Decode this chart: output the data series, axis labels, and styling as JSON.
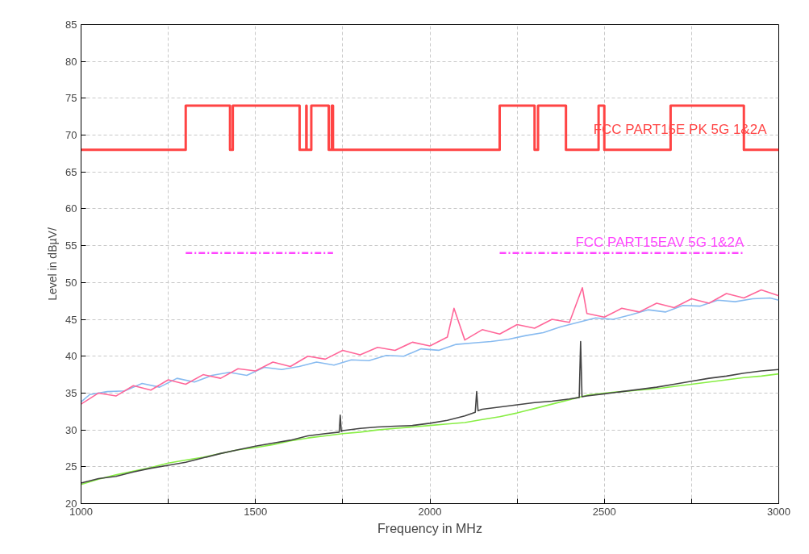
{
  "chart_data": {
    "type": "line",
    "xlabel": "Frequency in MHz",
    "ylabel": "Level in dBµV/",
    "xlim": [
      1000,
      3000
    ],
    "ylim": [
      20,
      85
    ],
    "xticks": [
      1000,
      {
        "value": 1250,
        "label": null
      },
      1500,
      {
        "value": 1750,
        "label": null
      },
      2000,
      {
        "value": 2250,
        "label": null
      },
      2500,
      {
        "value": 2750,
        "label": null
      },
      3000
    ],
    "yticks": [
      20,
      25,
      30,
      35,
      40,
      45,
      50,
      55,
      60,
      65,
      70,
      75,
      80,
      85
    ],
    "grid": true,
    "marker": "none",
    "line_style": "solid",
    "series": [
      {
        "color": "#88bbf0",
        "x": [
          1000,
          1025,
          1075,
          1125,
          1175,
          1225,
          1275,
          1325,
          1375,
          1425,
          1475,
          1525,
          1575,
          1625,
          1675,
          1725,
          1775,
          1825,
          1875,
          1925,
          1975,
          2025,
          2075,
          2125,
          2175,
          2225,
          2275,
          2325,
          2375,
          2425,
          2475,
          2525,
          2575,
          2625,
          2675,
          2725,
          2775,
          2825,
          2875,
          2925,
          2975,
          3000
        ],
        "values": [
          33.8,
          34.8,
          35.2,
          35.3,
          36.3,
          35.8,
          37.0,
          36.5,
          37.4,
          37.8,
          37.4,
          38.5,
          38.2,
          38.6,
          39.2,
          38.8,
          39.5,
          39.4,
          40.1,
          40.0,
          41.0,
          40.8,
          41.6,
          41.8,
          42.0,
          42.3,
          42.8,
          43.2,
          44.0,
          44.6,
          45.2,
          45.0,
          45.6,
          46.3,
          46.0,
          46.9,
          46.8,
          47.6,
          47.4,
          47.8,
          47.9,
          47.6
        ]
      },
      {
        "color": "#ff6699",
        "x": [
          1000,
          1050,
          1100,
          1150,
          1200,
          1250,
          1300,
          1350,
          1400,
          1450,
          1500,
          1550,
          1600,
          1650,
          1700,
          1750,
          1800,
          1850,
          1900,
          1950,
          2000,
          2050,
          2069,
          2100,
          2150,
          2200,
          2250,
          2300,
          2350,
          2400,
          2437,
          2450,
          2500,
          2550,
          2600,
          2650,
          2700,
          2750,
          2800,
          2850,
          2900,
          2950,
          3000
        ],
        "values": [
          33.5,
          35.0,
          34.6,
          36.0,
          35.4,
          36.8,
          36.2,
          37.5,
          37.0,
          38.3,
          38.0,
          39.2,
          38.6,
          40.0,
          39.6,
          40.8,
          40.2,
          41.2,
          40.8,
          41.9,
          41.4,
          42.6,
          46.5,
          42.2,
          43.6,
          43.0,
          44.3,
          43.8,
          45.0,
          44.6,
          49.3,
          45.8,
          45.3,
          46.5,
          46.0,
          47.2,
          46.6,
          47.8,
          47.2,
          48.5,
          47.9,
          49.0,
          48.2
        ]
      },
      {
        "color": "#88ee44",
        "x": [
          1000,
          1050,
          1100,
          1150,
          1200,
          1250,
          1300,
          1350,
          1400,
          1450,
          1500,
          1550,
          1600,
          1650,
          1700,
          1750,
          1800,
          1850,
          1900,
          1950,
          2000,
          2050,
          2100,
          2150,
          2200,
          2250,
          2300,
          2350,
          2400,
          2450,
          2500,
          2550,
          2600,
          2650,
          2700,
          2750,
          2800,
          2850,
          2900,
          2950,
          3000
        ],
        "values": [
          22.6,
          23.3,
          23.9,
          24.4,
          24.9,
          25.5,
          25.9,
          26.3,
          26.8,
          27.3,
          27.6,
          28.0,
          28.5,
          28.9,
          29.2,
          29.5,
          29.7,
          30.0,
          30.2,
          30.4,
          30.6,
          30.8,
          31.0,
          31.4,
          31.8,
          32.3,
          32.9,
          33.5,
          34.1,
          34.7,
          35.0,
          35.2,
          35.4,
          35.6,
          35.9,
          36.2,
          36.5,
          36.8,
          37.1,
          37.3,
          37.6
        ]
      },
      {
        "color": "#444444",
        "x": [
          1000,
          1050,
          1100,
          1150,
          1200,
          1250,
          1300,
          1350,
          1400,
          1450,
          1500,
          1550,
          1600,
          1650,
          1700,
          1740,
          1743,
          1746,
          1750,
          1800,
          1850,
          1900,
          1950,
          2000,
          2050,
          2100,
          2130,
          2134,
          2138,
          2150,
          2200,
          2250,
          2300,
          2350,
          2400,
          2428,
          2432,
          2436,
          2450,
          2500,
          2550,
          2600,
          2650,
          2700,
          2750,
          2800,
          2850,
          2900,
          2950,
          3000
        ],
        "values": [
          22.8,
          23.4,
          23.7,
          24.3,
          24.8,
          25.2,
          25.6,
          26.2,
          26.8,
          27.3,
          27.8,
          28.2,
          28.6,
          29.2,
          29.5,
          29.7,
          32.0,
          29.8,
          29.9,
          30.2,
          30.4,
          30.5,
          30.6,
          30.9,
          31.3,
          31.9,
          32.4,
          35.2,
          32.6,
          32.8,
          33.1,
          33.4,
          33.7,
          33.9,
          34.2,
          34.4,
          42.0,
          34.5,
          34.6,
          34.9,
          35.2,
          35.5,
          35.8,
          36.2,
          36.6,
          37.0,
          37.3,
          37.7,
          38.0,
          38.2
        ]
      },
      {
        "type": "step",
        "color": "#ff4444",
        "x": [
          1000,
          1300,
          1427,
          1435,
          1626.5,
          1645.5,
          1646.5,
          1660,
          1710,
          1718.8,
          1722.2,
          2200,
          2300,
          2310,
          2390,
          2483.5,
          2500,
          2690,
          2900,
          3000
        ],
        "values": [
          68,
          74,
          68,
          74,
          68,
          74,
          68,
          74,
          68,
          74,
          68,
          74,
          68,
          74,
          68,
          74,
          68,
          74,
          68,
          68
        ]
      },
      {
        "line_style": "dashed",
        "color": "#ff44ff",
        "x": [
          1300,
          1722.2
        ],
        "values": [
          54,
          54
        ]
      },
      {
        "line_style": "dashed",
        "color": "#ff44ff",
        "x": [
          2200,
          2900
        ],
        "values": [
          54,
          54
        ]
      }
    ],
    "annotations": [
      "FCC PART15E PK 5G 1&2A",
      "FCC PART15EAV 5G 1&2A"
    ]
  }
}
